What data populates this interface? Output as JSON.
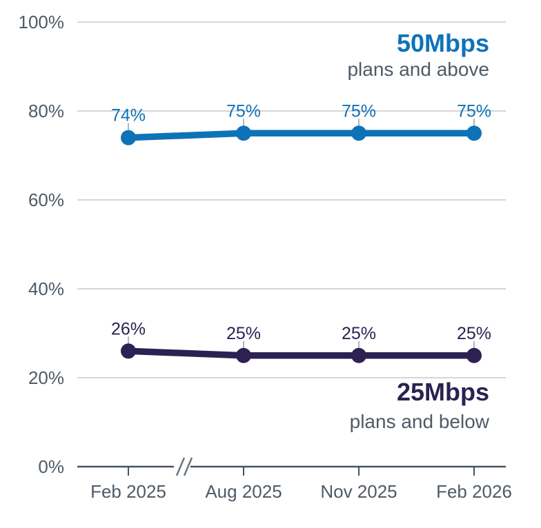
{
  "chart_data": {
    "type": "line",
    "title": "",
    "categories": [
      "Feb 2025",
      "Aug 2025",
      "Nov 2025",
      "Feb 2026"
    ],
    "series": [
      {
        "name": "50Mbps",
        "subtitle": "plans and above",
        "values": [
          74,
          75,
          75,
          75
        ],
        "point_labels": [
          "74%",
          "75%",
          "75%",
          "75%"
        ],
        "color": "#0E72B8"
      },
      {
        "name": "25Mbps",
        "subtitle": "plans and below",
        "values": [
          26,
          25,
          25,
          25
        ],
        "point_labels": [
          "26%",
          "25%",
          "25%",
          "25%"
        ],
        "color": "#2C2152"
      }
    ],
    "ylim": [
      0,
      100
    ],
    "y_ticks": [
      {
        "value": 0,
        "label": "0%"
      },
      {
        "value": 20,
        "label": "20%"
      },
      {
        "value": 40,
        "label": "40%"
      },
      {
        "value": 60,
        "label": "60%"
      },
      {
        "value": 80,
        "label": "80%"
      },
      {
        "value": 100,
        "label": "100%"
      }
    ],
    "grid": "horizontal-only",
    "legend_position": "inline-annotations-right",
    "x_axis_break": true,
    "x_axis_break_after": "Feb 2025",
    "colors": {
      "series_blue": "#0E72B8",
      "series_navy": "#2C2152",
      "axis_line": "#45515D",
      "tick_label_text": "#4E5A66",
      "subtitle_text": "#4E5A66",
      "gridline": "#C9C9C9",
      "label_connector": "#A9ADB2",
      "axis_break_mark": "#6B7680",
      "background": "#FFFFFF"
    }
  }
}
